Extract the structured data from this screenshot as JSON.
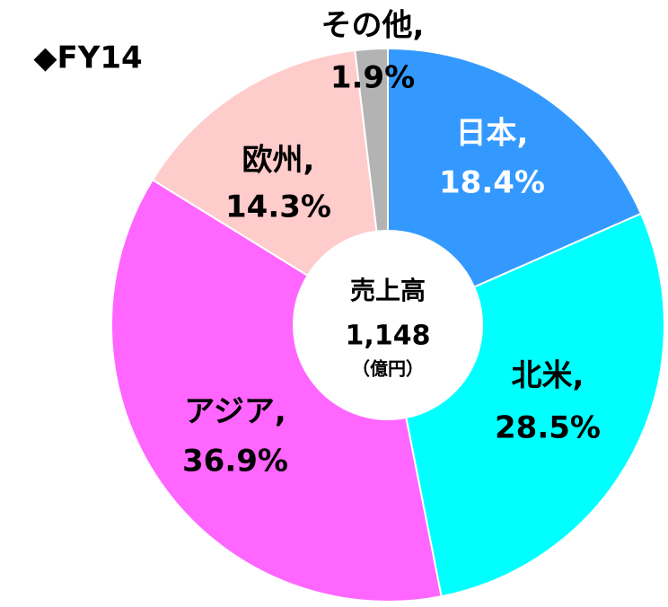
{
  "chart_data": {
    "type": "donut",
    "title": "◆FY14",
    "center_text": [
      "売上高",
      "1,148",
      "（億円）"
    ],
    "categories": [
      "日本,",
      "北米,",
      "アジア,",
      "欧州,",
      "その他,"
    ],
    "values": [
      18.4,
      28.5,
      36.9,
      14.3,
      1.9
    ],
    "value_labels": [
      "18.4%",
      "28.5%",
      "36.9%",
      "14.3%",
      "1.9%"
    ],
    "colors": [
      "#3399ff",
      "#00ffff",
      "#ff66ff",
      "#ffcccc",
      "#b3b3b3"
    ]
  }
}
